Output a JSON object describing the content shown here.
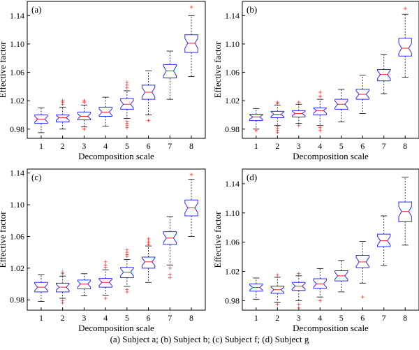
{
  "caption": "(a) Subject a; (b) Subject b; (c) Subject f; (d) Subject g",
  "chart_data": [
    {
      "type": "box",
      "panel_label": "(a)",
      "xlabel": "Decomposition scale",
      "ylabel": "Effective factor",
      "categories": [
        "1",
        "2",
        "3",
        "4",
        "5",
        "6",
        "7",
        "8"
      ],
      "yticks": [
        "0.98",
        "1.02",
        "1.06",
        "1.10",
        "1.14"
      ],
      "ylim": [
        0.967,
        1.16
      ],
      "boxes": [
        {
          "q1": 0.988,
          "median": 0.994,
          "q3": 1.0,
          "whisker_low": 0.975,
          "whisker_high": 1.01,
          "outliers": []
        },
        {
          "q1": 0.99,
          "median": 0.996,
          "q3": 1.0,
          "whisker_low": 0.98,
          "whisker_high": 1.011,
          "outliers": [
            1.015,
            1.018,
            1.02
          ]
        },
        {
          "q1": 0.993,
          "median": 0.998,
          "q3": 1.004,
          "whisker_low": 0.983,
          "whisker_high": 1.014,
          "outliers": [
            0.98,
            1.018,
            1.02
          ]
        },
        {
          "q1": 0.998,
          "median": 1.004,
          "q3": 1.011,
          "whisker_low": 0.984,
          "whisker_high": 1.025,
          "outliers": []
        },
        {
          "q1": 1.008,
          "median": 1.015,
          "q3": 1.023,
          "whisker_low": 0.995,
          "whisker_high": 1.034,
          "outliers": [
            0.982,
            0.985,
            0.988,
            0.991,
            1.038,
            1.042,
            1.046
          ]
        },
        {
          "q1": 1.022,
          "median": 1.032,
          "q3": 1.042,
          "whisker_low": 1.0,
          "whisker_high": 1.062,
          "outliers": [
            0.992
          ]
        },
        {
          "q1": 1.052,
          "median": 1.062,
          "q3": 1.071,
          "whisker_low": 1.022,
          "whisker_high": 1.09,
          "outliers": []
        },
        {
          "q1": 1.088,
          "median": 1.101,
          "q3": 1.113,
          "whisker_low": 1.054,
          "whisker_high": 1.14,
          "outliers": [
            1.152
          ]
        }
      ]
    },
    {
      "type": "box",
      "panel_label": "(b)",
      "xlabel": "Decomposition scale",
      "ylabel": "Effective factor",
      "categories": [
        "1",
        "2",
        "3",
        "4",
        "5",
        "6",
        "7",
        "8"
      ],
      "yticks": [
        "0.98",
        "1.02",
        "1.06",
        "1.10",
        "1.14"
      ],
      "ylim": [
        0.967,
        1.16
      ],
      "boxes": [
        {
          "q1": 0.992,
          "median": 0.997,
          "q3": 1.001,
          "whisker_low": 0.98,
          "whisker_high": 1.009,
          "outliers": [
            0.978
          ]
        },
        {
          "q1": 0.996,
          "median": 1.001,
          "q3": 1.005,
          "whisker_low": 0.985,
          "whisker_high": 1.014,
          "outliers": [
            0.975,
            0.978,
            0.981,
            0.984,
            1.016,
            1.018
          ]
        },
        {
          "q1": 0.997,
          "median": 1.002,
          "q3": 1.006,
          "whisker_low": 0.988,
          "whisker_high": 1.015,
          "outliers": [
            0.985,
            1.018
          ]
        },
        {
          "q1": 1.0,
          "median": 1.006,
          "q3": 1.01,
          "whisker_low": 0.985,
          "whisker_high": 1.022,
          "outliers": [
            0.978,
            0.982,
            1.026,
            1.032
          ]
        },
        {
          "q1": 1.008,
          "median": 1.015,
          "q3": 1.022,
          "whisker_low": 0.99,
          "whisker_high": 1.036,
          "outliers": []
        },
        {
          "q1": 1.022,
          "median": 1.029,
          "q3": 1.036,
          "whisker_low": 1.002,
          "whisker_high": 1.056,
          "outliers": []
        },
        {
          "q1": 1.048,
          "median": 1.057,
          "q3": 1.064,
          "whisker_low": 1.03,
          "whisker_high": 1.085,
          "outliers": []
        },
        {
          "q1": 1.083,
          "median": 1.094,
          "q3": 1.108,
          "whisker_low": 1.053,
          "whisker_high": 1.142,
          "outliers": [
            1.15
          ]
        }
      ]
    },
    {
      "type": "box",
      "panel_label": "(c)",
      "xlabel": "Decomposition scale",
      "ylabel": "Effective factor",
      "categories": [
        "1",
        "2",
        "3",
        "4",
        "5",
        "6",
        "7",
        "8"
      ],
      "yticks": [
        "0.98",
        "1.02",
        "1.06",
        "1.10",
        "1.14"
      ],
      "ylim": [
        0.967,
        1.145
      ],
      "boxes": [
        {
          "q1": 0.99,
          "median": 0.996,
          "q3": 1.002,
          "whisker_low": 0.978,
          "whisker_high": 1.012,
          "outliers": []
        },
        {
          "q1": 0.99,
          "median": 0.996,
          "q3": 1.001,
          "whisker_low": 0.982,
          "whisker_high": 1.01,
          "outliers": [
            0.976,
            0.979,
            1.013,
            1.015
          ]
        },
        {
          "q1": 0.994,
          "median": 1.0,
          "q3": 1.005,
          "whisker_low": 0.985,
          "whisker_high": 1.013,
          "outliers": []
        },
        {
          "q1": 0.996,
          "median": 1.002,
          "q3": 1.007,
          "whisker_low": 0.986,
          "whisker_high": 1.018,
          "outliers": [
            0.982,
            1.021,
            1.024,
            1.028
          ]
        },
        {
          "q1": 1.008,
          "median": 1.015,
          "q3": 1.021,
          "whisker_low": 0.997,
          "whisker_high": 1.031,
          "outliers": [
            0.99,
            0.993,
            1.035,
            1.037,
            1.04,
            1.043
          ]
        },
        {
          "q1": 1.02,
          "median": 1.028,
          "q3": 1.034,
          "whisker_low": 1.002,
          "whisker_high": 1.048,
          "outliers": [
            1.05,
            1.053,
            1.057
          ]
        },
        {
          "q1": 1.05,
          "median": 1.058,
          "q3": 1.066,
          "whisker_low": 1.024,
          "whisker_high": 1.085,
          "outliers": [
            1.008,
            1.012,
            1.02
          ]
        },
        {
          "q1": 1.086,
          "median": 1.096,
          "q3": 1.106,
          "whisker_low": 1.06,
          "whisker_high": 1.132,
          "outliers": [
            1.138
          ]
        }
      ]
    },
    {
      "type": "box",
      "panel_label": "(d)",
      "xlabel": "Decomposition scale",
      "ylabel": "Effective factor",
      "categories": [
        "1",
        "2",
        "3",
        "4",
        "5",
        "6",
        "7",
        "8"
      ],
      "yticks": [
        "0.98",
        "1.02",
        "1.06",
        "1.10",
        "1.14"
      ],
      "ylim": [
        0.967,
        1.16
      ],
      "boxes": [
        {
          "q1": 0.993,
          "median": 0.998,
          "q3": 1.003,
          "whisker_low": 0.982,
          "whisker_high": 1.011,
          "outliers": []
        },
        {
          "q1": 0.99,
          "median": 0.995,
          "q3": 1.0,
          "whisker_low": 0.978,
          "whisker_high": 1.012,
          "outliers": [
            0.975,
            1.015
          ]
        },
        {
          "q1": 0.994,
          "median": 1.0,
          "q3": 1.005,
          "whisker_low": 0.98,
          "whisker_high": 1.014,
          "outliers": [
            0.97,
            0.975,
            1.017
          ]
        },
        {
          "q1": 0.997,
          "median": 1.003,
          "q3": 1.01,
          "whisker_low": 0.985,
          "whisker_high": 1.024,
          "outliers": [
            0.98
          ]
        },
        {
          "q1": 1.007,
          "median": 1.014,
          "q3": 1.021,
          "whisker_low": 0.992,
          "whisker_high": 1.035,
          "outliers": []
        },
        {
          "q1": 1.025,
          "median": 1.033,
          "q3": 1.042,
          "whisker_low": 1.004,
          "whisker_high": 1.061,
          "outliers": [
            0.985
          ]
        },
        {
          "q1": 1.054,
          "median": 1.062,
          "q3": 1.071,
          "whisker_low": 1.028,
          "whisker_high": 1.096,
          "outliers": []
        },
        {
          "q1": 1.088,
          "median": 1.102,
          "q3": 1.115,
          "whisker_low": 1.056,
          "whisker_high": 1.149,
          "outliers": []
        }
      ]
    }
  ]
}
